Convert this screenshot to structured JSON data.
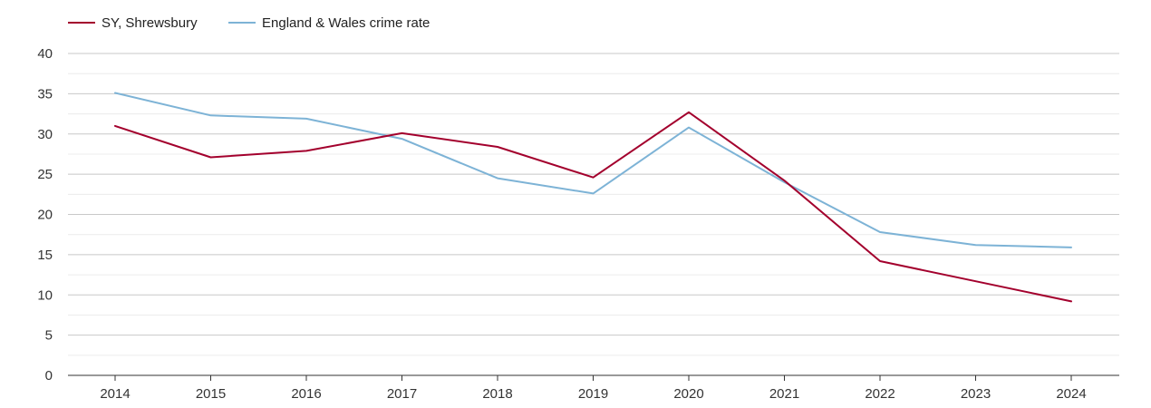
{
  "chart_data": {
    "type": "line",
    "title": "",
    "xlabel": "",
    "ylabel": "",
    "x": [
      "2014",
      "2015",
      "2016",
      "2017",
      "2018",
      "2019",
      "2020",
      "2021",
      "2022",
      "2023",
      "2024"
    ],
    "ylim": [
      0,
      40
    ],
    "yticks": [
      "0",
      "5",
      "10",
      "15",
      "20",
      "25",
      "30",
      "35",
      "40"
    ],
    "grid": true,
    "legend_position": "top-left",
    "series": [
      {
        "name": "SY, Shrewsbury",
        "color": "#a3002d",
        "values": [
          31.0,
          27.1,
          27.9,
          30.1,
          28.4,
          24.6,
          32.7,
          24.2,
          14.2,
          11.7,
          9.2
        ]
      },
      {
        "name": "England & Wales crime rate",
        "color": "#7db3d6",
        "values": [
          35.1,
          32.3,
          31.9,
          29.4,
          24.5,
          22.6,
          30.8,
          24.0,
          17.8,
          16.2,
          15.9
        ]
      }
    ]
  }
}
